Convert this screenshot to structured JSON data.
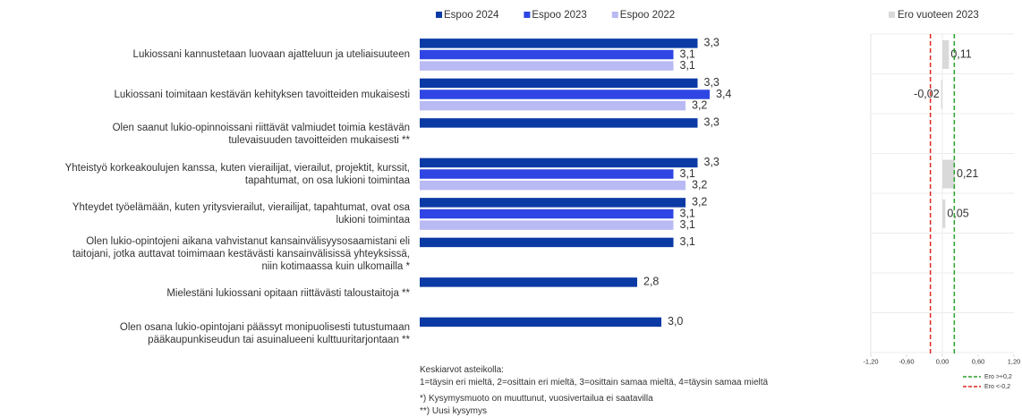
{
  "chart_data": [
    {
      "type": "bar",
      "orientation": "horizontal",
      "categories": [
        "Lukiossani kannustetaan luovaan ajatteluun ja uteliaisuuteen",
        "Lukiossani toimitaan kestävän kehityksen tavoitteiden mukaisesti",
        "Olen saanut lukio-opinnoissani riittävät valmiudet toimia kestävän\ntulevaisuuden tavoitteiden mukaisesti **",
        "Yhteistyö korkeakoulujen kanssa, kuten vierailijat, vierailut, projektit, kurssit,\ntapahtumat, on osa lukioni toimintaa",
        "Yhteydet työelämään, kuten yritysvierailut, vierailijat, tapahtumat, ovat osa\nlukioni toimintaa",
        "Olen lukio-opintojeni aikana vahvistanut kansainvälisyysosaamistani eli\ntaitojani, jotka auttavat toimimaan kestävästi kansainvälisissä yhteyksissä,\nniin kotimaassa kuin ulkomailla *",
        "Mielestäni lukiossani opitaan riittävästi taloustaitoja **",
        "Olen osana lukio-opintojani päässyt monipuolisesti tutustumaan\npääkaupunkiseudun tai asuinalueeni kulttuuritarjontaan **"
      ],
      "series": [
        {
          "name": "Espoo 2024",
          "color": "#0b3aa4",
          "values": [
            3.3,
            3.3,
            3.3,
            3.3,
            3.2,
            3.1,
            2.8,
            3.0
          ],
          "value_labels": [
            "3,3",
            "3,3",
            "3,3",
            "3,3",
            "3,2",
            "3,1",
            "2,8",
            "3,0"
          ]
        },
        {
          "name": "Espoo 2023",
          "color": "#2f46e4",
          "values": [
            3.1,
            3.4,
            null,
            3.1,
            3.1,
            null,
            null,
            null
          ],
          "value_labels": [
            "3,1",
            "3,4",
            null,
            "3,1",
            "3,1",
            null,
            null,
            null
          ]
        },
        {
          "name": "Espoo 2022",
          "color": "#b9baf3",
          "values": [
            3.1,
            3.2,
            null,
            3.2,
            3.1,
            null,
            null,
            null
          ],
          "value_labels": [
            "3,1",
            "3,2",
            null,
            "3,2",
            "3,1",
            null,
            null,
            null
          ]
        }
      ],
      "xlim": [
        1,
        4
      ],
      "notes": [
        "Keskiarvot asteikolla:",
        "1=täysin eri mieltä, 2=osittain eri mieltä, 3=osittain samaa mieltä, 4=täysin samaa mieltä",
        "*) Kysymysmuoto on muuttunut, vuosivertailua ei saatavilla",
        "**) Uusi kysymys"
      ]
    },
    {
      "type": "bar",
      "orientation": "horizontal",
      "series": [
        {
          "name": "Ero vuoteen 2023",
          "color": "#d9d9d9",
          "values": [
            0.11,
            -0.02,
            null,
            0.21,
            0.05,
            null,
            null,
            null
          ],
          "value_labels": [
            "0,11",
            "-0,02",
            null,
            "0,21",
            "0,05",
            null,
            null,
            null
          ]
        }
      ],
      "xlim": [
        -1.2,
        1.2
      ],
      "xticks": [
        {
          "value": -1.2,
          "label": "-1,20"
        },
        {
          "value": -0.6,
          "label": "-0,60"
        },
        {
          "value": 0,
          "label": "0,00"
        },
        {
          "value": 0.6,
          "label": "0,60"
        },
        {
          "value": 1.2,
          "label": "1,20"
        }
      ],
      "reference_lines": [
        {
          "value": 0.2,
          "label": "Ero >+0,2",
          "color": "#2ca02c"
        },
        {
          "value": -0.2,
          "label": "Ero <-0,2",
          "color": "#e0281f"
        }
      ]
    }
  ]
}
